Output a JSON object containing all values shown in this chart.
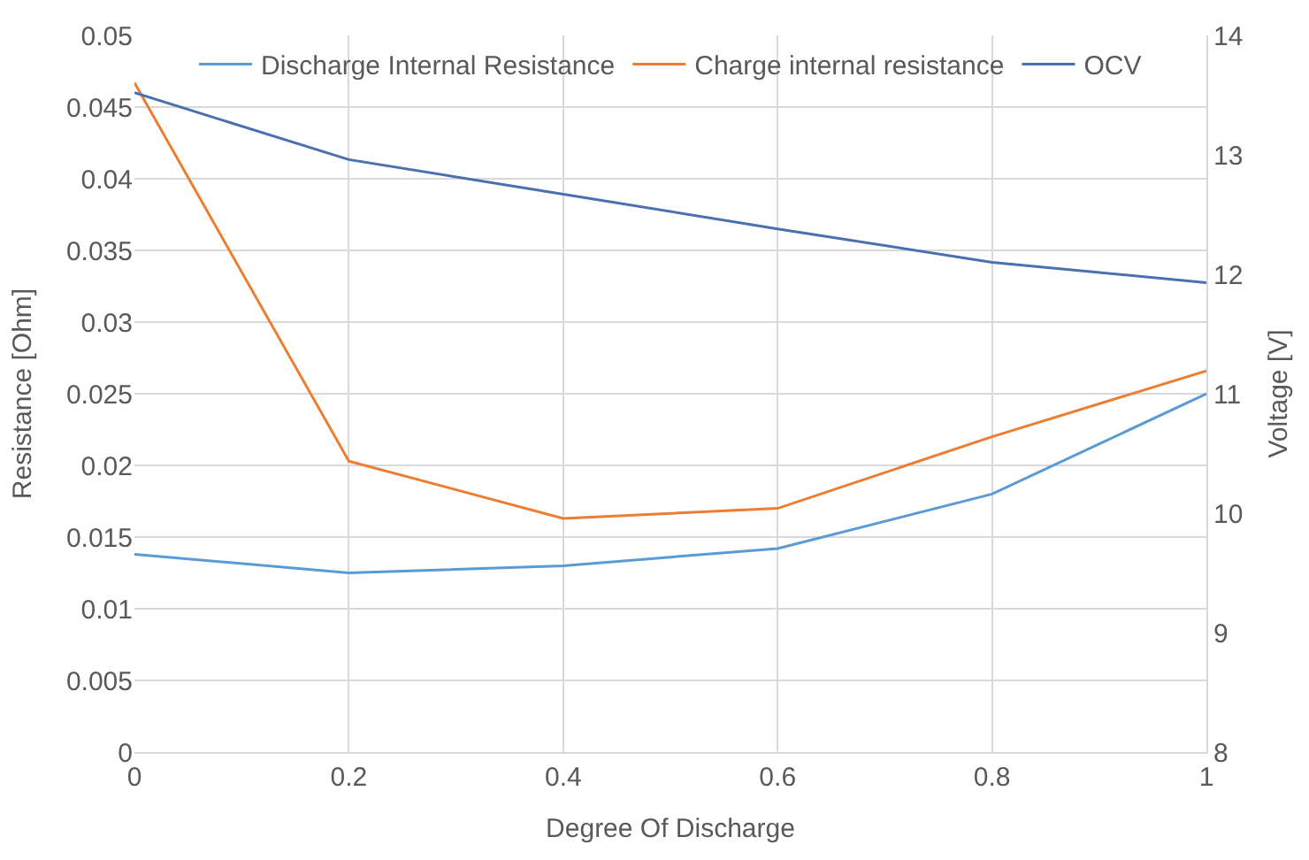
{
  "chart_data": {
    "type": "line",
    "xlabel": "Degree Of Discharge",
    "ylabel": "Resistance [Ohm]",
    "y2label": "Voltage [V]",
    "x": [
      0,
      0.2,
      0.4,
      0.6,
      0.8,
      1
    ],
    "series": [
      {
        "name": "Discharge Internal Resistance",
        "color": "#5b9bd5",
        "values": [
          0.0138,
          0.0125,
          0.013,
          0.0142,
          0.018,
          0.025
        ]
      },
      {
        "name": "Charge internal resistance",
        "color": "#ed7d31",
        "values": [
          0.0467,
          0.0203,
          0.0163,
          0.017,
          0.022,
          0.0266
        ]
      },
      {
        "name": "OCV",
        "color": "#4a70b0",
        "axis": "y2",
        "values": [
          13.52,
          12.96,
          12.67,
          12.38,
          12.1,
          11.93
        ]
      }
    ],
    "xlim": [
      0,
      1
    ],
    "xticks": [
      0,
      0.2,
      0.4,
      0.6,
      0.8,
      1
    ],
    "ylim": [
      0,
      0.05
    ],
    "yticks": [
      0,
      0.005,
      0.01,
      0.015,
      0.02,
      0.025,
      0.03,
      0.035,
      0.04,
      0.045,
      0.05
    ],
    "y2lim": [
      8,
      14
    ],
    "y2ticks": [
      8,
      9,
      10,
      11,
      12,
      13,
      14
    ],
    "grid": true,
    "legend": "top",
    "marker": "none",
    "line_style": "solid"
  }
}
